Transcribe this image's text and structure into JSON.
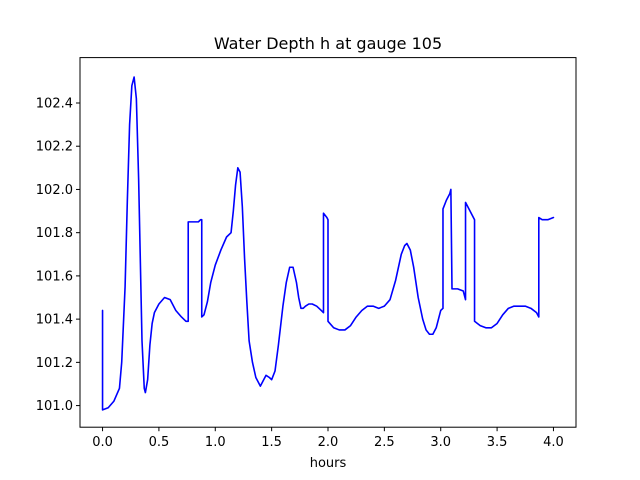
{
  "chart_data": {
    "type": "line",
    "title": "Water Depth h at gauge 105",
    "xlabel": "hours",
    "ylabel": "",
    "xlim": [
      -0.2,
      4.2
    ],
    "ylim": [
      100.9,
      102.61
    ],
    "grid": false,
    "legend": "none",
    "x_ticks": [
      {
        "value": 0.0,
        "label": "0.0"
      },
      {
        "value": 0.5,
        "label": "0.5"
      },
      {
        "value": 1.0,
        "label": "1.0"
      },
      {
        "value": 1.5,
        "label": "1.5"
      },
      {
        "value": 2.0,
        "label": "2.0"
      },
      {
        "value": 2.5,
        "label": "2.5"
      },
      {
        "value": 3.0,
        "label": "3.0"
      },
      {
        "value": 3.5,
        "label": "3.5"
      },
      {
        "value": 4.0,
        "label": "4.0"
      }
    ],
    "y_ticks": [
      {
        "value": 101.0,
        "label": "101.0"
      },
      {
        "value": 101.2,
        "label": "101.2"
      },
      {
        "value": 101.4,
        "label": "101.4"
      },
      {
        "value": 101.6,
        "label": "101.6"
      },
      {
        "value": 101.8,
        "label": "101.8"
      },
      {
        "value": 102.0,
        "label": "102.0"
      },
      {
        "value": 102.2,
        "label": "102.2"
      },
      {
        "value": 102.4,
        "label": "102.4"
      }
    ],
    "series": [
      {
        "color": "#0000ff",
        "x": [
          0.0,
          0.0,
          0.05,
          0.1,
          0.15,
          0.17,
          0.2,
          0.22,
          0.24,
          0.26,
          0.28,
          0.3,
          0.32,
          0.35,
          0.37,
          0.38,
          0.4,
          0.42,
          0.44,
          0.46,
          0.5,
          0.55,
          0.6,
          0.65,
          0.7,
          0.74,
          0.76,
          0.76,
          0.8,
          0.85,
          0.87,
          0.88,
          0.88,
          0.9,
          0.93,
          0.96,
          1.0,
          1.05,
          1.1,
          1.14,
          1.16,
          1.18,
          1.2,
          1.22,
          1.24,
          1.26,
          1.28,
          1.3,
          1.33,
          1.36,
          1.4,
          1.43,
          1.45,
          1.48,
          1.5,
          1.53,
          1.56,
          1.6,
          1.63,
          1.66,
          1.69,
          1.72,
          1.74,
          1.76,
          1.78,
          1.8,
          1.83,
          1.86,
          1.9,
          1.94,
          1.96,
          1.96,
          1.99,
          2.0,
          2.0,
          2.05,
          2.1,
          2.15,
          2.2,
          2.25,
          2.3,
          2.35,
          2.4,
          2.45,
          2.5,
          2.55,
          2.6,
          2.65,
          2.68,
          2.7,
          2.73,
          2.76,
          2.8,
          2.84,
          2.87,
          2.9,
          2.93,
          2.96,
          3.0,
          3.02,
          3.02,
          3.05,
          3.08,
          3.09,
          3.1,
          3.15,
          3.2,
          3.22,
          3.22,
          3.25,
          3.28,
          3.3,
          3.3,
          3.35,
          3.4,
          3.45,
          3.5,
          3.55,
          3.6,
          3.65,
          3.7,
          3.75,
          3.8,
          3.85,
          3.87,
          3.87,
          3.9,
          3.95,
          4.0
        ],
        "values": [
          101.44,
          100.98,
          100.99,
          101.02,
          101.08,
          101.2,
          101.55,
          101.95,
          102.3,
          102.48,
          102.52,
          102.42,
          102.05,
          101.3,
          101.08,
          101.06,
          101.12,
          101.28,
          101.38,
          101.43,
          101.47,
          101.5,
          101.49,
          101.44,
          101.41,
          101.39,
          101.39,
          101.85,
          101.85,
          101.85,
          101.86,
          101.86,
          101.41,
          101.42,
          101.48,
          101.57,
          101.65,
          101.72,
          101.78,
          101.8,
          101.9,
          102.02,
          102.1,
          102.08,
          101.92,
          101.68,
          101.48,
          101.3,
          101.2,
          101.13,
          101.09,
          101.12,
          101.14,
          101.13,
          101.12,
          101.16,
          101.28,
          101.46,
          101.57,
          101.64,
          101.64,
          101.57,
          101.5,
          101.45,
          101.45,
          101.46,
          101.47,
          101.47,
          101.46,
          101.44,
          101.43,
          101.89,
          101.87,
          101.86,
          101.39,
          101.36,
          101.35,
          101.35,
          101.37,
          101.41,
          101.44,
          101.46,
          101.46,
          101.45,
          101.46,
          101.49,
          101.58,
          101.7,
          101.74,
          101.75,
          101.72,
          101.64,
          101.5,
          101.4,
          101.35,
          101.33,
          101.33,
          101.36,
          101.44,
          101.45,
          101.91,
          101.95,
          101.98,
          102.0,
          101.54,
          101.54,
          101.53,
          101.49,
          101.94,
          101.91,
          101.88,
          101.86,
          101.39,
          101.37,
          101.36,
          101.36,
          101.38,
          101.42,
          101.45,
          101.46,
          101.46,
          101.46,
          101.45,
          101.43,
          101.41,
          101.87,
          101.86,
          101.86,
          101.87
        ]
      }
    ]
  }
}
